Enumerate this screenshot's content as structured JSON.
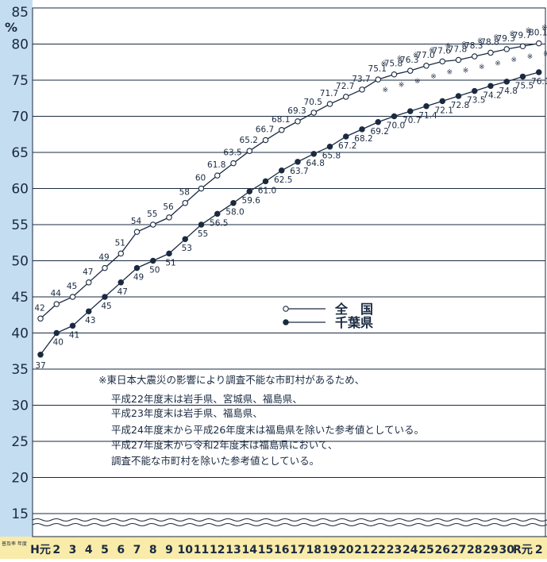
{
  "chart_data": {
    "type": "line",
    "ylabel_unit": "%",
    "ylim": [
      15,
      85
    ],
    "axis_break": true,
    "y_ticks": [
      "85",
      "80",
      "75",
      "70",
      "65",
      "60",
      "55",
      "50",
      "45",
      "40",
      "35",
      "30",
      "25",
      "20",
      "15"
    ],
    "x_axis_label": "普及率 年度",
    "categories": [
      "H元",
      "2",
      "3",
      "4",
      "5",
      "6",
      "7",
      "8",
      "9",
      "10",
      "11",
      "12",
      "13",
      "14",
      "15",
      "16",
      "17",
      "18",
      "19",
      "20",
      "21",
      "22",
      "23",
      "24",
      "25",
      "26",
      "27",
      "28",
      "29",
      "30",
      "R元",
      "2"
    ],
    "grid": true,
    "legend_position": "middle-right",
    "series": [
      {
        "name": "全　国",
        "marker": "open-circle",
        "values": [
          42,
          44,
          45,
          47,
          49,
          51,
          54,
          55,
          56,
          58,
          60,
          61.8,
          63.5,
          65.2,
          66.7,
          68.1,
          69.3,
          70.5,
          71.7,
          72.7,
          73.7,
          75.1,
          75.8,
          76.3,
          77.0,
          77.6,
          77.8,
          78.3,
          78.8,
          79.3,
          79.7,
          80.1
        ],
        "labels": [
          "42",
          "44",
          "45",
          "47",
          "49",
          "51",
          "54",
          "55",
          "56",
          "58",
          "60",
          "61.8",
          "63.5",
          "65.2",
          "66.7",
          "68.1",
          "69.3",
          "70.5",
          "71.7",
          "72.7",
          "73.7",
          "75.1",
          "75.8",
          "76.3",
          "77.0",
          "77.6",
          "77.8",
          "78.3",
          "78.8",
          "79.3",
          "79.7",
          "80.1"
        ]
      },
      {
        "name": "千葉県",
        "marker": "filled-circle",
        "values": [
          37,
          40,
          41,
          43,
          45,
          47,
          49,
          50,
          51,
          53,
          55,
          56.5,
          58.0,
          59.6,
          61.0,
          62.5,
          63.7,
          64.8,
          65.8,
          67.2,
          68.2,
          69.2,
          70.0,
          70.7,
          71.4,
          72.1,
          72.8,
          73.5,
          74.2,
          74.8,
          75.5,
          76.1
        ],
        "labels": [
          "37",
          "40",
          "41",
          "43",
          "45",
          "47",
          "49",
          "50",
          "51",
          "53",
          "55",
          "56.5",
          "58.0",
          "59.6",
          "61.0",
          "62.5",
          "63.7",
          "64.8",
          "65.8",
          "67.2",
          "68.2",
          "69.2",
          "70.0",
          "70.7",
          "71.4",
          "72.1",
          "72.8",
          "73.5",
          "74.2",
          "74.8",
          "75.5",
          "76.1"
        ]
      }
    ],
    "note_symbol": "※",
    "annotation_lines": [
      "※東日本大震災の影響により調査不能な市町村があるため、",
      "平成22年度末は岩手県、宮城県、福島県、",
      "平成23年度末は岩手県、福島県、",
      "平成24年度末から平成26年度末は福島県を除いた参考値としている。",
      "平成27年度末から令和2年度末は福島県において、",
      "調査不能な市町村を除いた参考値としている。"
    ]
  }
}
